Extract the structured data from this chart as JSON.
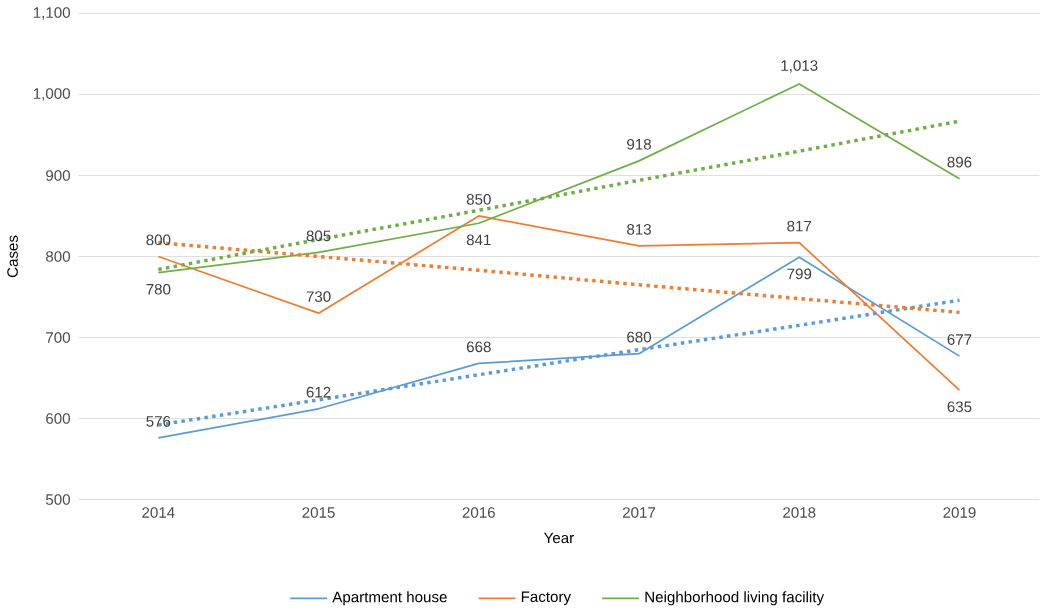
{
  "chart_data": {
    "type": "line",
    "xlabel": "Year",
    "ylabel": "Cases",
    "categories": [
      "2014",
      "2015",
      "2016",
      "2017",
      "2018",
      "2019"
    ],
    "series": [
      {
        "name": "Apartment house",
        "color": "#5b9bd5",
        "values": [
          576,
          612,
          668,
          680,
          799,
          677
        ],
        "value_labels": [
          "576",
          "612",
          "668",
          "680",
          "799",
          "677"
        ]
      },
      {
        "name": "Factory",
        "color": "#ed7d31",
        "values": [
          800,
          730,
          850,
          813,
          817,
          635
        ],
        "value_labels": [
          "800",
          "730",
          "850",
          "813",
          "817",
          "635"
        ]
      },
      {
        "name": "Neighborhood living facility",
        "color": "#70ad47",
        "values": [
          780,
          805,
          841,
          918,
          1013,
          896
        ],
        "value_labels": [
          "780",
          "805",
          "841",
          "918",
          "1,013",
          "896"
        ]
      },
      {
        "type": "line",
        "line_style": "dotted",
        "color": "#5b9bd5",
        "values": [
          592,
          623,
          654,
          685,
          715,
          746
        ]
      },
      {
        "type": "line",
        "line_style": "dotted",
        "color": "#ed7d31",
        "values": [
          817,
          800,
          783,
          765,
          748,
          731
        ]
      },
      {
        "type": "line",
        "line_style": "dotted",
        "color": "#70ad47",
        "values": [
          784,
          821,
          857,
          894,
          930,
          967
        ]
      }
    ],
    "ylim": [
      500,
      1100
    ],
    "yticks": [
      500,
      600,
      700,
      800,
      900,
      {
        "value": 1000,
        "label": "1,000"
      },
      {
        "value": 1100,
        "label": "1,100"
      }
    ],
    "grid": "y",
    "legend": "bottom",
    "marker": "none",
    "line_style": "solid"
  }
}
